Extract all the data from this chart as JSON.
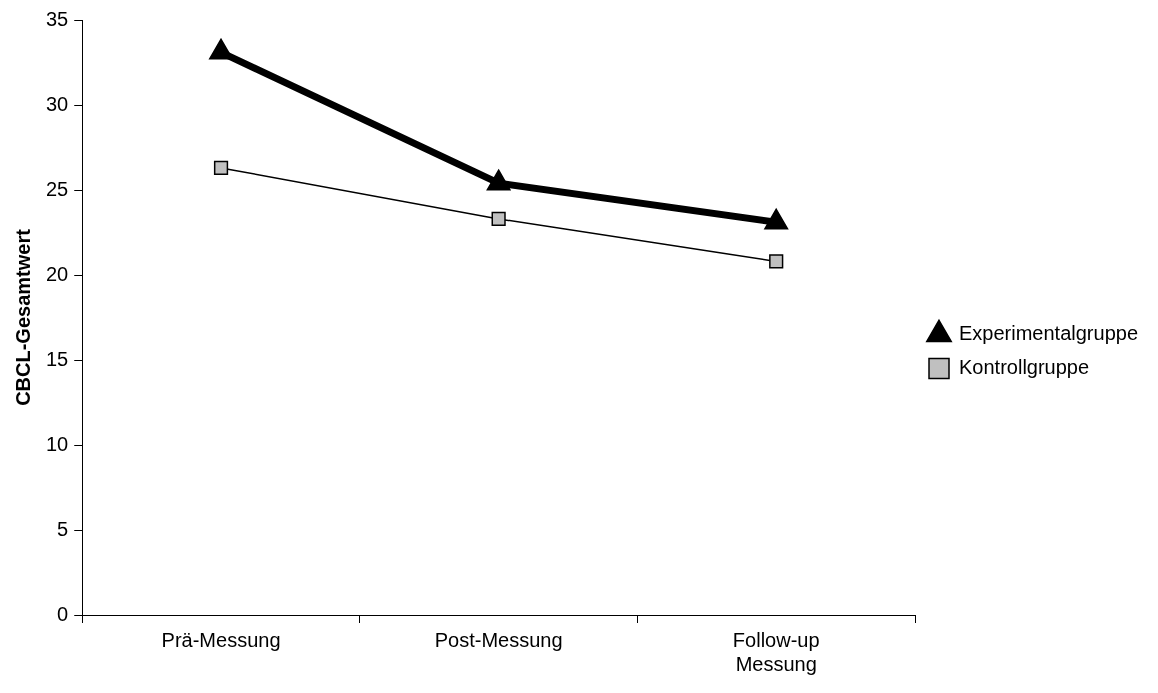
{
  "chart_data": {
    "type": "line",
    "ylabel": "CBCL-Gesamtwert",
    "categories": [
      "Prä-Messung",
      "Post-Messung",
      "Follow-up Messung"
    ],
    "series": [
      {
        "name": "Experimentalgruppe",
        "color": "#000000",
        "marker": "triangle",
        "values": [
          33.1,
          25.4,
          23.1
        ]
      },
      {
        "name": "Kontrollgruppe",
        "color": "#c0c0c0",
        "marker": "square",
        "values": [
          26.3,
          23.3,
          20.8
        ]
      }
    ],
    "ylim": [
      0,
      35
    ],
    "yticks": [
      0,
      5,
      10,
      15,
      20,
      25,
      30,
      35
    ],
    "grid": false,
    "legend": "right",
    "line_style": "solid"
  }
}
